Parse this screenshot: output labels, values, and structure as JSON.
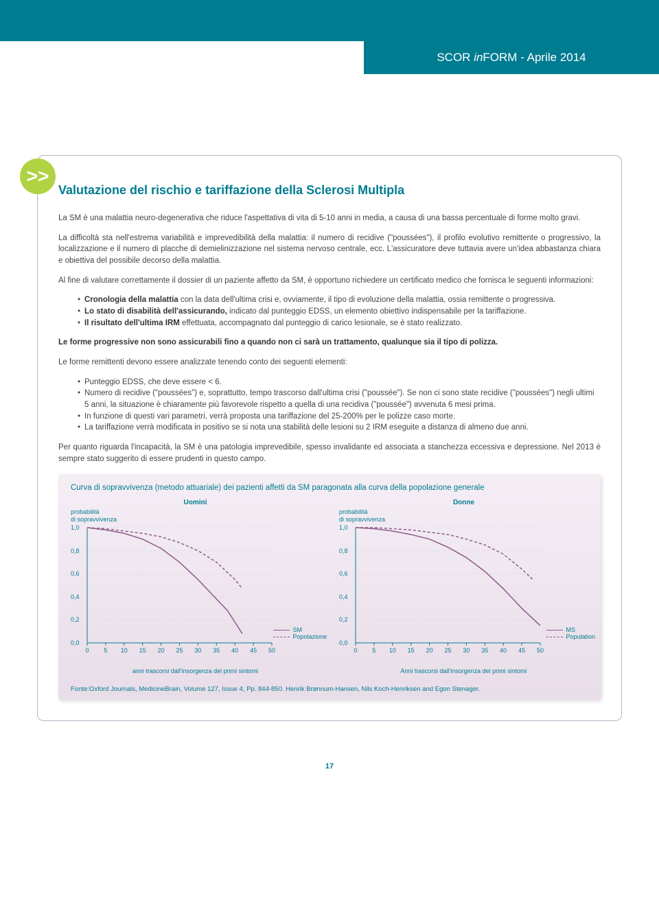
{
  "header": {
    "brand_pre": "SCOR ",
    "brand_in": "in",
    "brand_post": "FORM - Aprile 2014"
  },
  "icon_glyph": ">>",
  "title": "Valutazione del rischio e tariffazione della Sclerosi Multipla",
  "p1": "La SM è una malattia neuro-degenerativa che riduce l'aspettativa di vita di 5-10 anni in media, a causa di una bassa percentuale di forme molto gravi.",
  "p2": "La difficoltà sta nell'estrema variabilità e imprevedibilità della malattia: il numero di recidive (\"poussées\"), il profilo evolutivo remittente o progressivo, la localizzazione e il numero di placche di demielinizzazione nel sistema nervoso centrale, ecc. L'assicuratore deve tuttavia avere un'idea abbastanza chiara e obiettiva del possibile decorso della malattia.",
  "p3": "Al fine di valutare correttamente il dossier di un paziente affetto da SM, è opportuno richiedere un certificato medico che fornisca le seguenti informazioni:",
  "li1b": "Cronologia della malattia",
  "li1": " con la data dell'ultima crisi e, ovviamente, il tipo di evoluzione della malattia, ossia remittente o  progressiva.",
  "li2b": "Lo stato di disabilità dell'assicurando,",
  "li2": " indicato dal punteggio EDSS, un elemento obiettivo indispensabile per la tariffazione.",
  "li3b": "Il risultato dell'ultima IRM",
  "li3": " effettuata, accompagnato dal punteggio di carico lesionale, se è stato realizzato.",
  "p_bold": "Le forme progressive non sono assicurabili fino a quando non ci sarà un trattamento, qualunque sia il tipo di polizza.",
  "p4": "Le forme remittenti devono essere analizzate tenendo conto dei seguenti elementi:",
  "li4": "Punteggio EDSS, che deve essere < 6.",
  "li5": "Numero di recidive (\"poussées\") e, soprattutto, tempo trascorso dall'ultima crisi (\"poussée\"). Se non ci sono state recidive (\"poussées\") negli ultimi 5 anni, la situazione è chiaramente più favorevole rispetto a quella di una recidiva (\"poussée\") avvenuta 6 mesi prima.",
  "li6": "In funzione di questi vari parametri, verrà proposta una tariffazione del 25-200% per le polizze caso morte.",
  "li7": "La tariffazione verrà modificata in positivo se si nota una stabilità delle lesioni su 2 IRM eseguite a distanza di almeno due anni.",
  "p5": "Per quanto riguarda l'incapacità, la SM è una patologia imprevedibile, spesso invalidante ed associata a stanchezza eccessiva e depressione. Nel 2013 è sempre stato suggerito di essere prudenti in questo campo.",
  "chart": {
    "title": "Curva di sopravvivenza (metodo attuariale) dei pazienti affetti da SM paragonata alla curva della popolazione generale",
    "ylabel1": "probabilità",
    "ylabel2": "di sopravvivenza",
    "xlabel_left": "anni trascorsi dall'insorgenza dei primi sintomi",
    "xlabel_right": "Anni trascorsi dall'insorgenza dei primi sintomi",
    "sub_left": "Uomini",
    "sub_right": "Donne",
    "lg1_l": "SM",
    "lg1_r": "Popolazione",
    "lg2_l": "MS",
    "lg2_r": "Population",
    "y_ticks": [
      "1,0",
      "0,8",
      "0,6",
      "0,4",
      "0,2",
      "0,0"
    ],
    "x_ticks": [
      "0",
      "5",
      "10",
      "15",
      "20",
      "25",
      "30",
      "35",
      "40",
      "45",
      "50"
    ],
    "ms_color": "#8B5A8C",
    "grid_color": "#c5b8c5",
    "men_sm": [
      [
        0,
        1.0
      ],
      [
        5,
        0.98
      ],
      [
        10,
        0.95
      ],
      [
        15,
        0.9
      ],
      [
        20,
        0.82
      ],
      [
        25,
        0.7
      ],
      [
        30,
        0.55
      ],
      [
        35,
        0.38
      ],
      [
        38,
        0.28
      ],
      [
        40,
        0.18
      ],
      [
        42,
        0.08
      ]
    ],
    "men_pop": [
      [
        0,
        1.0
      ],
      [
        5,
        0.99
      ],
      [
        10,
        0.97
      ],
      [
        15,
        0.95
      ],
      [
        20,
        0.92
      ],
      [
        25,
        0.87
      ],
      [
        30,
        0.8
      ],
      [
        35,
        0.7
      ],
      [
        40,
        0.55
      ],
      [
        42,
        0.47
      ]
    ],
    "women_sm": [
      [
        0,
        1.0
      ],
      [
        5,
        0.99
      ],
      [
        10,
        0.97
      ],
      [
        15,
        0.94
      ],
      [
        20,
        0.9
      ],
      [
        25,
        0.83
      ],
      [
        30,
        0.74
      ],
      [
        35,
        0.62
      ],
      [
        40,
        0.47
      ],
      [
        45,
        0.3
      ],
      [
        50,
        0.15
      ]
    ],
    "women_pop": [
      [
        0,
        1.0
      ],
      [
        5,
        1.0
      ],
      [
        10,
        0.99
      ],
      [
        15,
        0.98
      ],
      [
        20,
        0.96
      ],
      [
        25,
        0.94
      ],
      [
        30,
        0.9
      ],
      [
        35,
        0.85
      ],
      [
        40,
        0.77
      ],
      [
        45,
        0.64
      ],
      [
        48,
        0.55
      ]
    ]
  },
  "source": "Fonte:Oxford Journals, MedicineBrain, Volume 127, Issue 4, Pp. 844-850. Henrik Brønnum-Hansen, Nils Koch-Henriksen and Egon Stenager.",
  "page_num": "17"
}
